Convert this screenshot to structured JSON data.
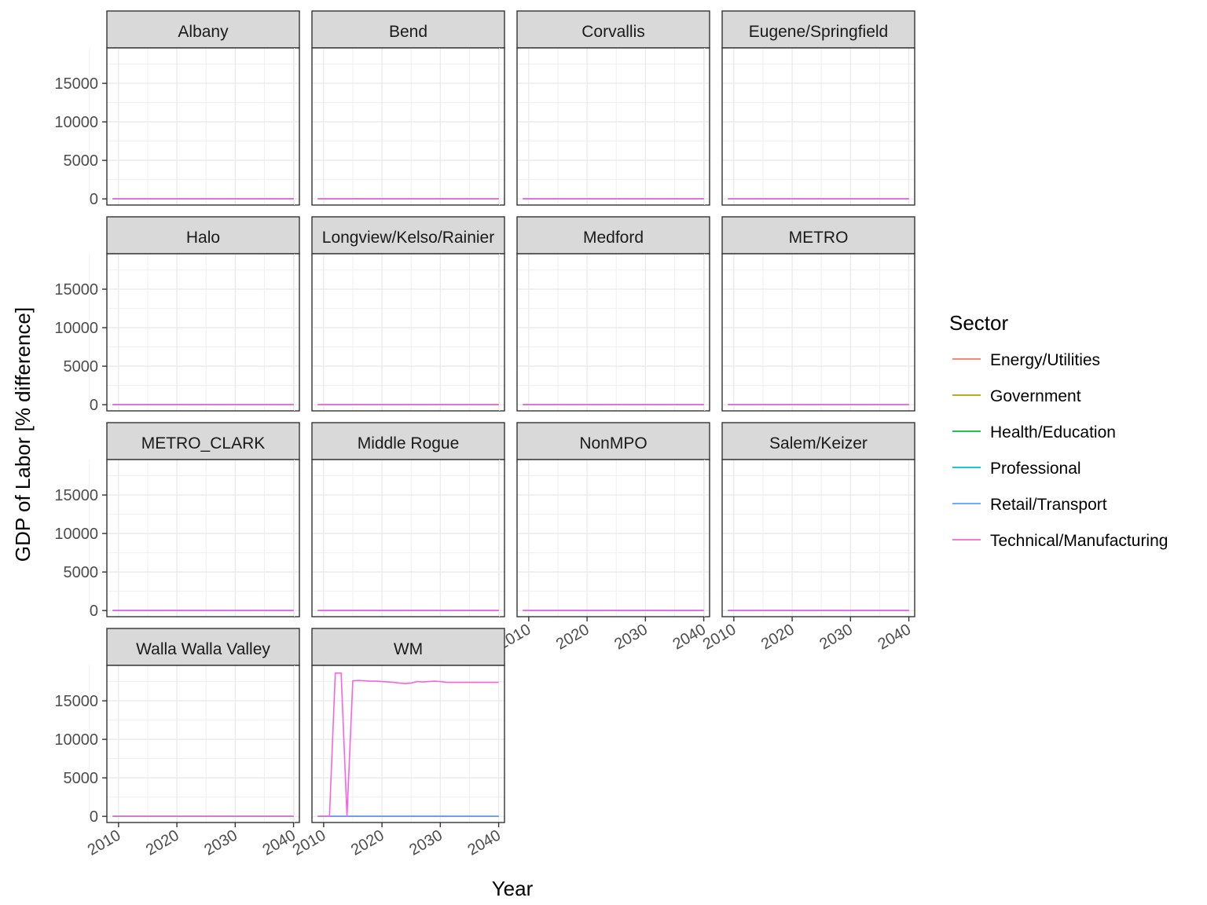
{
  "chart_data": {
    "type": "line",
    "facet_layout": "wrap",
    "xlabel": "Year",
    "ylabel": "GDP of Labor [% difference]",
    "x_ticks": [
      2010,
      2020,
      2030,
      2040
    ],
    "y_ticks": [
      0,
      5000,
      10000,
      15000
    ],
    "xlim": [
      2008,
      2041
    ],
    "ylim": [
      -800,
      19600
    ],
    "x": [
      2009,
      2010,
      2011,
      2012,
      2013,
      2014,
      2015,
      2016,
      2017,
      2018,
      2019,
      2020,
      2021,
      2022,
      2023,
      2024,
      2025,
      2026,
      2027,
      2028,
      2029,
      2030,
      2031,
      2032,
      2033,
      2034,
      2035,
      2036,
      2037,
      2038,
      2039,
      2040
    ],
    "grid": true,
    "legend": {
      "title": "Sector",
      "position": "right",
      "items": [
        {
          "name": "Energy/Utilities",
          "color": "#F8766D"
        },
        {
          "name": "Government",
          "color": "#B79F00"
        },
        {
          "name": "Health/Education",
          "color": "#00BA38"
        },
        {
          "name": "Professional",
          "color": "#00BFC4"
        },
        {
          "name": "Retail/Transport",
          "color": "#619CFF"
        },
        {
          "name": "Technical/Manufacturing",
          "color": "#F564E3"
        }
      ]
    },
    "facets": [
      {
        "name": "Albany",
        "series": {}
      },
      {
        "name": "Bend",
        "series": {}
      },
      {
        "name": "Corvallis",
        "series": {}
      },
      {
        "name": "Eugene/Springfield",
        "series": {}
      },
      {
        "name": "Halo",
        "series": {}
      },
      {
        "name": "Longview/Kelso/Rainier",
        "series": {}
      },
      {
        "name": "Medford",
        "series": {}
      },
      {
        "name": "METRO",
        "series": {}
      },
      {
        "name": "METRO_CLARK",
        "series": {}
      },
      {
        "name": "Middle Rogue",
        "series": {}
      },
      {
        "name": "NonMPO",
        "series": {}
      },
      {
        "name": "Salem/Keizer",
        "series": {}
      },
      {
        "name": "Walla Walla Valley",
        "series": {}
      },
      {
        "name": "WM",
        "series": {
          "Technical/Manufacturing": [
            0,
            0,
            0,
            18600,
            18600,
            0,
            17600,
            17650,
            17600,
            17550,
            17550,
            17500,
            17450,
            17400,
            17300,
            17250,
            17300,
            17500,
            17450,
            17500,
            17550,
            17500,
            17400,
            17400,
            17400,
            17400,
            17400,
            17400,
            17400,
            17400,
            17400,
            17400
          ]
        }
      }
    ]
  }
}
